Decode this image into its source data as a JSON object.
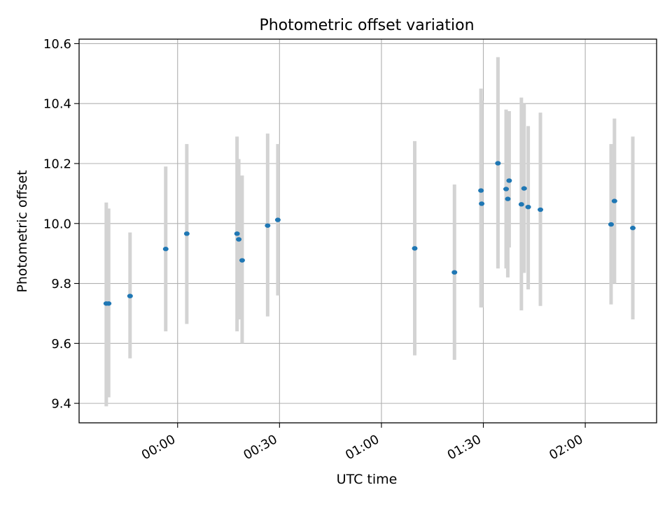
{
  "chart_data": {
    "type": "scatter",
    "title": "Photometric offset variation",
    "xlabel": "UTC time",
    "ylabel": "Photometric offset",
    "x_ticks": [
      "00:00",
      "00:30",
      "01:00",
      "01:30",
      "02:00"
    ],
    "x_tick_minutes": [
      0,
      30,
      60,
      90,
      120
    ],
    "xlim_minutes": [
      -29,
      141
    ],
    "y_ticks": [
      "9.4",
      "9.6",
      "9.8",
      "10.0",
      "10.2",
      "10.4",
      "10.6"
    ],
    "y_tick_values": [
      9.4,
      9.6,
      9.8,
      10.0,
      10.2,
      10.4,
      10.6
    ],
    "ylim": [
      9.335,
      10.615
    ],
    "grid": true,
    "colors": {
      "point": "#1f77b4",
      "errorbar": "#d3d3d3",
      "grid": "#b0b0b0"
    },
    "points": [
      {
        "t": -21.0,
        "y": 9.733,
        "lo": 9.39,
        "hi": 10.07
      },
      {
        "t": -20.3,
        "y": 9.733,
        "lo": 9.42,
        "hi": 10.05
      },
      {
        "t": -14.0,
        "y": 9.758,
        "lo": 9.55,
        "hi": 9.97
      },
      {
        "t": -3.5,
        "y": 9.915,
        "lo": 9.64,
        "hi": 10.19
      },
      {
        "t": 2.7,
        "y": 9.966,
        "lo": 9.665,
        "hi": 10.265
      },
      {
        "t": 17.5,
        "y": 9.966,
        "lo": 9.64,
        "hi": 10.29
      },
      {
        "t": 18.0,
        "y": 9.947,
        "lo": 9.68,
        "hi": 10.215
      },
      {
        "t": 19.0,
        "y": 9.877,
        "lo": 9.6,
        "hi": 10.16
      },
      {
        "t": 26.5,
        "y": 9.993,
        "lo": 9.69,
        "hi": 10.3
      },
      {
        "t": 29.5,
        "y": 10.012,
        "lo": 9.76,
        "hi": 10.265
      },
      {
        "t": 69.8,
        "y": 9.917,
        "lo": 9.56,
        "hi": 10.275
      },
      {
        "t": 81.5,
        "y": 9.837,
        "lo": 9.545,
        "hi": 10.13
      },
      {
        "t": 89.3,
        "y": 10.11,
        "lo": 9.72,
        "hi": 10.45
      },
      {
        "t": 89.5,
        "y": 10.066,
        "lo": 9.72,
        "hi": 10.41
      },
      {
        "t": 94.3,
        "y": 10.201,
        "lo": 9.85,
        "hi": 10.555
      },
      {
        "t": 96.7,
        "y": 10.115,
        "lo": 9.85,
        "hi": 10.38
      },
      {
        "t": 97.2,
        "y": 10.082,
        "lo": 9.82,
        "hi": 10.37
      },
      {
        "t": 97.6,
        "y": 10.143,
        "lo": 9.92,
        "hi": 10.375
      },
      {
        "t": 101.2,
        "y": 10.064,
        "lo": 9.71,
        "hi": 10.42
      },
      {
        "t": 102.0,
        "y": 10.117,
        "lo": 9.835,
        "hi": 10.4
      },
      {
        "t": 103.2,
        "y": 10.055,
        "lo": 9.78,
        "hi": 10.325
      },
      {
        "t": 106.8,
        "y": 10.046,
        "lo": 9.725,
        "hi": 10.37
      },
      {
        "t": 127.6,
        "y": 9.997,
        "lo": 9.73,
        "hi": 10.265
      },
      {
        "t": 128.6,
        "y": 10.075,
        "lo": 9.8,
        "hi": 10.35
      },
      {
        "t": 134.0,
        "y": 9.985,
        "lo": 9.68,
        "hi": 10.29
      }
    ]
  }
}
